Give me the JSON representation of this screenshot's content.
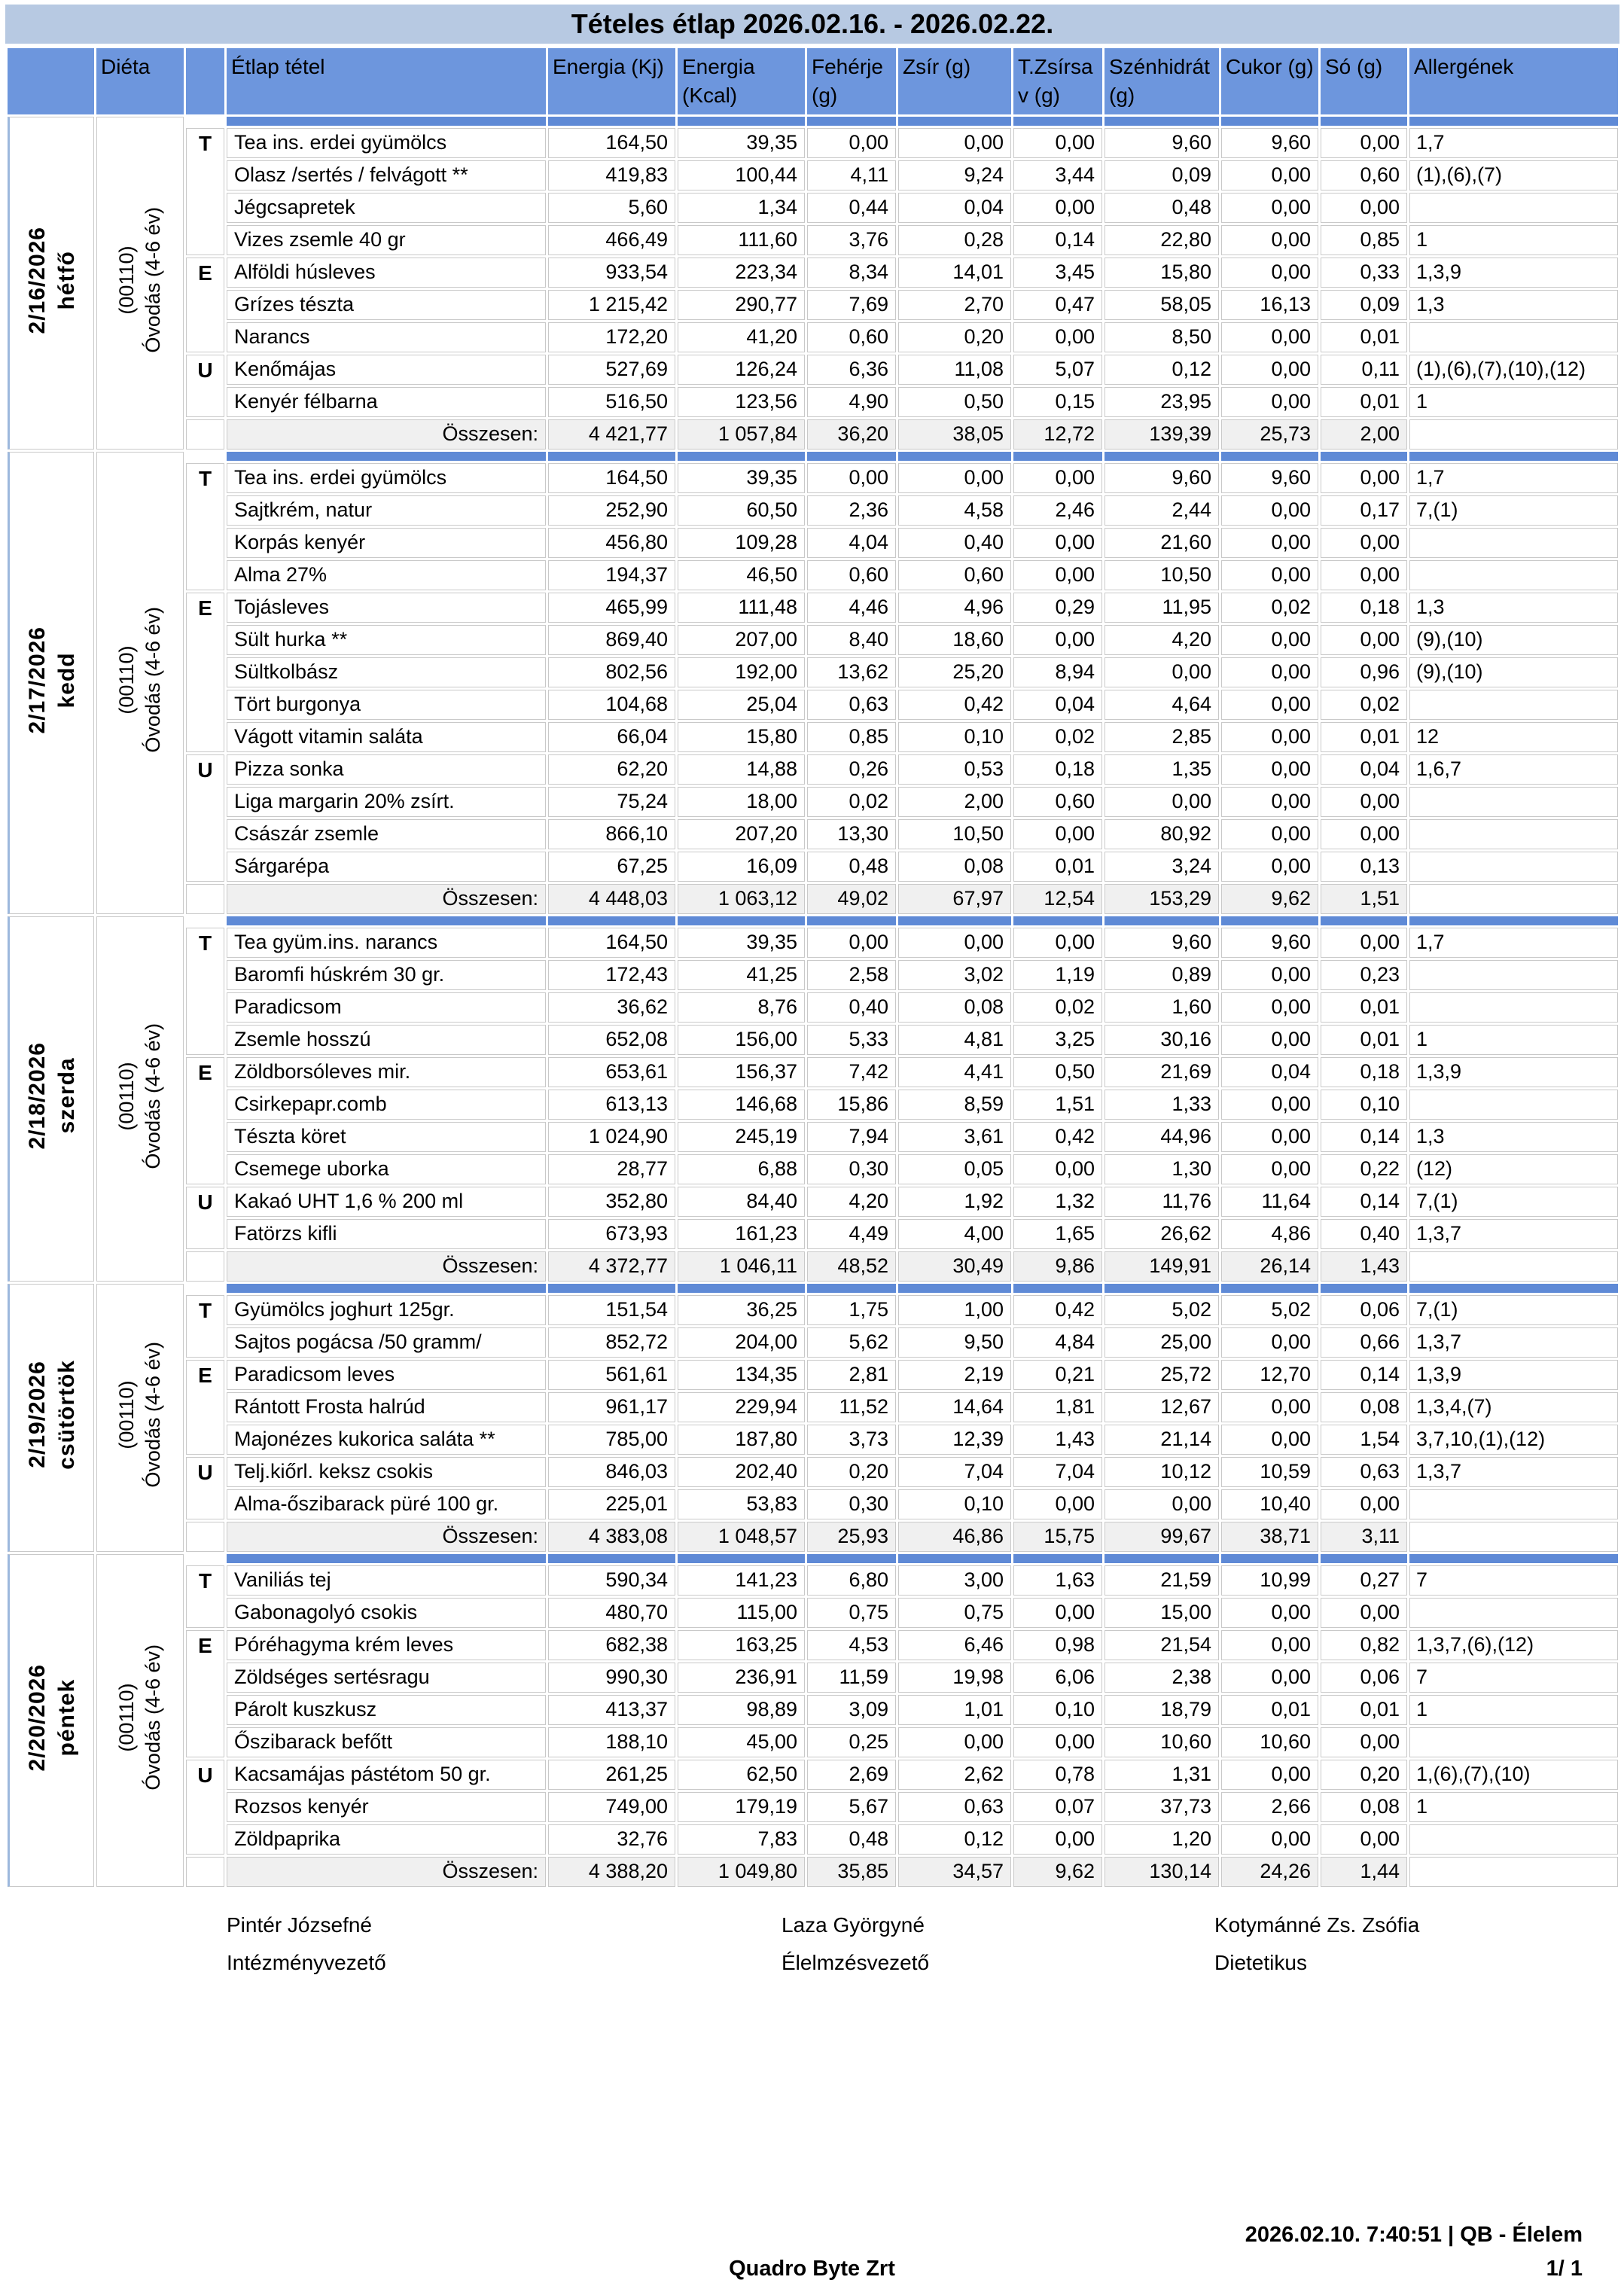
{
  "title": "Tételes étlap 2026.02.16. - 2026.02.22.",
  "colors": {
    "title_bg": "#b7c9e2",
    "header_bg": "#6d96dd",
    "separator_bg": "#5f8ad6",
    "total_bg": "#f0f0f0",
    "border": "#c9c9c9"
  },
  "table": {
    "columns": [
      "",
      "Diéta",
      "",
      "Étlap tétel",
      "Energia (Kj)",
      "Energia (Kcal)",
      "Fehérje (g)",
      "Zsír (g)",
      "T.Zsírsav (g)",
      "Szénhidrát (g)",
      "Cukor (g)",
      "Só (g)",
      "Allergének"
    ],
    "total_label": "Összesen:",
    "days": [
      {
        "date": "2/16/2026",
        "weekday": "hétfő",
        "diet_code": "(00110)",
        "diet_name": "Óvodás (4-6 év)",
        "rows": [
          {
            "meal": "T",
            "item": "Tea ins. erdei gyümölcs",
            "values": [
              "164,50",
              "39,35",
              "0,00",
              "0,00",
              "0,00",
              "9,60",
              "9,60",
              "0,00"
            ],
            "allergens": "1,7"
          },
          {
            "meal": "",
            "item": "Olasz /sertés / felvágott **",
            "values": [
              "419,83",
              "100,44",
              "4,11",
              "9,24",
              "3,44",
              "0,09",
              "0,00",
              "0,60"
            ],
            "allergens": "(1),(6),(7)"
          },
          {
            "meal": "",
            "item": "Jégcsapretek",
            "values": [
              "5,60",
              "1,34",
              "0,44",
              "0,04",
              "0,00",
              "0,48",
              "0,00",
              "0,00"
            ],
            "allergens": ""
          },
          {
            "meal": "",
            "item": "Vizes zsemle 40 gr",
            "values": [
              "466,49",
              "111,60",
              "3,76",
              "0,28",
              "0,14",
              "22,80",
              "0,00",
              "0,85"
            ],
            "allergens": "1"
          },
          {
            "meal": "E",
            "item": "Alföldi húsleves",
            "values": [
              "933,54",
              "223,34",
              "8,34",
              "14,01",
              "3,45",
              "15,80",
              "0,00",
              "0,33"
            ],
            "allergens": "1,3,9"
          },
          {
            "meal": "",
            "item": "Grízes tészta",
            "values": [
              "1 215,42",
              "290,77",
              "7,69",
              "2,70",
              "0,47",
              "58,05",
              "16,13",
              "0,09"
            ],
            "allergens": "1,3"
          },
          {
            "meal": "",
            "item": "Narancs",
            "values": [
              "172,20",
              "41,20",
              "0,60",
              "0,20",
              "0,00",
              "8,50",
              "0,00",
              "0,01"
            ],
            "allergens": ""
          },
          {
            "meal": "U",
            "item": "Kenőmájas",
            "values": [
              "527,69",
              "126,24",
              "6,36",
              "11,08",
              "5,07",
              "0,12",
              "0,00",
              "0,11"
            ],
            "allergens": "(1),(6),(7),(10),(12)"
          },
          {
            "meal": "",
            "item": "Kenyér félbarna",
            "values": [
              "516,50",
              "123,56",
              "4,90",
              "0,50",
              "0,15",
              "23,95",
              "0,00",
              "0,01"
            ],
            "allergens": "1"
          }
        ],
        "totals": [
          "4 421,77",
          "1 057,84",
          "36,20",
          "38,05",
          "12,72",
          "139,39",
          "25,73",
          "2,00"
        ]
      },
      {
        "date": "2/17/2026",
        "weekday": "kedd",
        "diet_code": "(00110)",
        "diet_name": "Óvodás (4-6 év)",
        "rows": [
          {
            "meal": "T",
            "item": "Tea ins. erdei gyümölcs",
            "values": [
              "164,50",
              "39,35",
              "0,00",
              "0,00",
              "0,00",
              "9,60",
              "9,60",
              "0,00"
            ],
            "allergens": "1,7"
          },
          {
            "meal": "",
            "item": "Sajtkrém, natur",
            "values": [
              "252,90",
              "60,50",
              "2,36",
              "4,58",
              "2,46",
              "2,44",
              "0,00",
              "0,17"
            ],
            "allergens": "7,(1)"
          },
          {
            "meal": "",
            "item": "Korpás kenyér",
            "values": [
              "456,80",
              "109,28",
              "4,04",
              "0,40",
              "0,00",
              "21,60",
              "0,00",
              "0,00"
            ],
            "allergens": ""
          },
          {
            "meal": "",
            "item": "Alma 27%",
            "values": [
              "194,37",
              "46,50",
              "0,60",
              "0,60",
              "0,00",
              "10,50",
              "0,00",
              "0,00"
            ],
            "allergens": ""
          },
          {
            "meal": "E",
            "item": "Tojásleves",
            "values": [
              "465,99",
              "111,48",
              "4,46",
              "4,96",
              "0,29",
              "11,95",
              "0,02",
              "0,18"
            ],
            "allergens": "1,3"
          },
          {
            "meal": "",
            "item": "Sült hurka **",
            "values": [
              "869,40",
              "207,00",
              "8,40",
              "18,60",
              "0,00",
              "4,20",
              "0,00",
              "0,00"
            ],
            "allergens": "(9),(10)"
          },
          {
            "meal": "",
            "item": "Sültkolbász",
            "values": [
              "802,56",
              "192,00",
              "13,62",
              "25,20",
              "8,94",
              "0,00",
              "0,00",
              "0,96"
            ],
            "allergens": "(9),(10)"
          },
          {
            "meal": "",
            "item": "Tört burgonya",
            "values": [
              "104,68",
              "25,04",
              "0,63",
              "0,42",
              "0,04",
              "4,64",
              "0,00",
              "0,02"
            ],
            "allergens": ""
          },
          {
            "meal": "",
            "item": "Vágott vitamin saláta",
            "values": [
              "66,04",
              "15,80",
              "0,85",
              "0,10",
              "0,02",
              "2,85",
              "0,00",
              "0,01"
            ],
            "allergens": "12"
          },
          {
            "meal": "U",
            "item": "Pizza sonka",
            "values": [
              "62,20",
              "14,88",
              "0,26",
              "0,53",
              "0,18",
              "1,35",
              "0,00",
              "0,04"
            ],
            "allergens": "1,6,7"
          },
          {
            "meal": "",
            "item": "Liga margarin 20% zsírt.",
            "values": [
              "75,24",
              "18,00",
              "0,02",
              "2,00",
              "0,60",
              "0,00",
              "0,00",
              "0,00"
            ],
            "allergens": ""
          },
          {
            "meal": "",
            "item": "Császár zsemle",
            "values": [
              "866,10",
              "207,20",
              "13,30",
              "10,50",
              "0,00",
              "80,92",
              "0,00",
              "0,00"
            ],
            "allergens": ""
          },
          {
            "meal": "",
            "item": "Sárgarépa",
            "values": [
              "67,25",
              "16,09",
              "0,48",
              "0,08",
              "0,01",
              "3,24",
              "0,00",
              "0,13"
            ],
            "allergens": ""
          }
        ],
        "totals": [
          "4 448,03",
          "1 063,12",
          "49,02",
          "67,97",
          "12,54",
          "153,29",
          "9,62",
          "1,51"
        ]
      },
      {
        "date": "2/18/2026",
        "weekday": "szerda",
        "diet_code": "(00110)",
        "diet_name": "Óvodás (4-6 év)",
        "rows": [
          {
            "meal": "T",
            "item": "Tea gyüm.ins. narancs",
            "values": [
              "164,50",
              "39,35",
              "0,00",
              "0,00",
              "0,00",
              "9,60",
              "9,60",
              "0,00"
            ],
            "allergens": "1,7"
          },
          {
            "meal": "",
            "item": "Baromfi húskrém 30 gr.",
            "values": [
              "172,43",
              "41,25",
              "2,58",
              "3,02",
              "1,19",
              "0,89",
              "0,00",
              "0,23"
            ],
            "allergens": ""
          },
          {
            "meal": "",
            "item": "Paradicsom",
            "values": [
              "36,62",
              "8,76",
              "0,40",
              "0,08",
              "0,02",
              "1,60",
              "0,00",
              "0,01"
            ],
            "allergens": ""
          },
          {
            "meal": "",
            "item": "Zsemle hosszú",
            "values": [
              "652,08",
              "156,00",
              "5,33",
              "4,81",
              "3,25",
              "30,16",
              "0,00",
              "0,01"
            ],
            "allergens": "1"
          },
          {
            "meal": "E",
            "item": "Zöldborsóleves mir.",
            "values": [
              "653,61",
              "156,37",
              "7,42",
              "4,41",
              "0,50",
              "21,69",
              "0,04",
              "0,18"
            ],
            "allergens": "1,3,9"
          },
          {
            "meal": "",
            "item": "Csirkepapr.comb",
            "values": [
              "613,13",
              "146,68",
              "15,86",
              "8,59",
              "1,51",
              "1,33",
              "0,00",
              "0,10"
            ],
            "allergens": ""
          },
          {
            "meal": "",
            "item": "Tészta köret",
            "values": [
              "1 024,90",
              "245,19",
              "7,94",
              "3,61",
              "0,42",
              "44,96",
              "0,00",
              "0,14"
            ],
            "allergens": "1,3"
          },
          {
            "meal": "",
            "item": "Csemege uborka",
            "values": [
              "28,77",
              "6,88",
              "0,30",
              "0,05",
              "0,00",
              "1,30",
              "0,00",
              "0,22"
            ],
            "allergens": "(12)"
          },
          {
            "meal": "U",
            "item": "Kakaó UHT 1,6 % 200 ml",
            "values": [
              "352,80",
              "84,40",
              "4,20",
              "1,92",
              "1,32",
              "11,76",
              "11,64",
              "0,14"
            ],
            "allergens": "7,(1)"
          },
          {
            "meal": "",
            "item": "Fatörzs kifli",
            "values": [
              "673,93",
              "161,23",
              "4,49",
              "4,00",
              "1,65",
              "26,62",
              "4,86",
              "0,40"
            ],
            "allergens": "1,3,7"
          }
        ],
        "totals": [
          "4 372,77",
          "1 046,11",
          "48,52",
          "30,49",
          "9,86",
          "149,91",
          "26,14",
          "1,43"
        ]
      },
      {
        "date": "2/19/2026",
        "weekday": "csütörtök",
        "diet_code": "(00110)",
        "diet_name": "Óvodás (4-6 év)",
        "rows": [
          {
            "meal": "T",
            "item": "Gyümölcs joghurt 125gr.",
            "values": [
              "151,54",
              "36,25",
              "1,75",
              "1,00",
              "0,42",
              "5,02",
              "5,02",
              "0,06"
            ],
            "allergens": "7,(1)"
          },
          {
            "meal": "",
            "item": "Sajtos pogácsa /50 gramm/",
            "values": [
              "852,72",
              "204,00",
              "5,62",
              "9,50",
              "4,84",
              "25,00",
              "0,00",
              "0,66"
            ],
            "allergens": "1,3,7"
          },
          {
            "meal": "E",
            "item": "Paradicsom leves",
            "values": [
              "561,61",
              "134,35",
              "2,81",
              "2,19",
              "0,21",
              "25,72",
              "12,70",
              "0,14"
            ],
            "allergens": "1,3,9"
          },
          {
            "meal": "",
            "item": "Rántott Frosta halrúd",
            "values": [
              "961,17",
              "229,94",
              "11,52",
              "14,64",
              "1,81",
              "12,67",
              "0,00",
              "0,08"
            ],
            "allergens": "1,3,4,(7)"
          },
          {
            "meal": "",
            "item": "Majonézes kukorica saláta **",
            "values": [
              "785,00",
              "187,80",
              "3,73",
              "12,39",
              "1,43",
              "21,14",
              "0,00",
              "1,54"
            ],
            "allergens": "3,7,10,(1),(12)"
          },
          {
            "meal": "U",
            "item": "Telj.kiőrl. keksz csokis",
            "values": [
              "846,03",
              "202,40",
              "0,20",
              "7,04",
              "7,04",
              "10,12",
              "10,59",
              "0,63"
            ],
            "allergens": "1,3,7"
          },
          {
            "meal": "",
            "item": "Alma-őszibarack püré 100 gr.",
            "values": [
              "225,01",
              "53,83",
              "0,30",
              "0,10",
              "0,00",
              "0,00",
              "10,40",
              "0,00"
            ],
            "allergens": ""
          }
        ],
        "totals": [
          "4 383,08",
          "1 048,57",
          "25,93",
          "46,86",
          "15,75",
          "99,67",
          "38,71",
          "3,11"
        ]
      },
      {
        "date": "2/20/2026",
        "weekday": "péntek",
        "diet_code": "(00110)",
        "diet_name": "Óvodás (4-6 év)",
        "rows": [
          {
            "meal": "T",
            "item": "Vaniliás tej",
            "values": [
              "590,34",
              "141,23",
              "6,80",
              "3,00",
              "1,63",
              "21,59",
              "10,99",
              "0,27"
            ],
            "allergens": "7"
          },
          {
            "meal": "",
            "item": "Gabonagolyó csokis",
            "values": [
              "480,70",
              "115,00",
              "0,75",
              "0,75",
              "0,00",
              "15,00",
              "0,00",
              "0,00"
            ],
            "allergens": ""
          },
          {
            "meal": "E",
            "item": "Póréhagyma krém leves",
            "values": [
              "682,38",
              "163,25",
              "4,53",
              "6,46",
              "0,98",
              "21,54",
              "0,00",
              "0,82"
            ],
            "allergens": "1,3,7,(6),(12)"
          },
          {
            "meal": "",
            "item": "Zöldséges sertésragu",
            "values": [
              "990,30",
              "236,91",
              "11,59",
              "19,98",
              "6,06",
              "2,38",
              "0,00",
              "0,06"
            ],
            "allergens": "7"
          },
          {
            "meal": "",
            "item": "Párolt kuszkusz",
            "values": [
              "413,37",
              "98,89",
              "3,09",
              "1,01",
              "0,10",
              "18,79",
              "0,01",
              "0,01"
            ],
            "allergens": "1"
          },
          {
            "meal": "",
            "item": "Őszibarack befőtt",
            "values": [
              "188,10",
              "45,00",
              "0,25",
              "0,00",
              "0,00",
              "10,60",
              "10,60",
              "0,00"
            ],
            "allergens": ""
          },
          {
            "meal": "U",
            "item": "Kacsamájas pástétom 50 gr.",
            "values": [
              "261,25",
              "62,50",
              "2,69",
              "2,62",
              "0,78",
              "1,31",
              "0,00",
              "0,20"
            ],
            "allergens": "1,(6),(7),(10)"
          },
          {
            "meal": "",
            "item": "Rozsos kenyér",
            "values": [
              "749,00",
              "179,19",
              "5,67",
              "0,63",
              "0,07",
              "37,73",
              "2,66",
              "0,08"
            ],
            "allergens": "1"
          },
          {
            "meal": "",
            "item": "Zöldpaprika",
            "values": [
              "32,76",
              "7,83",
              "0,48",
              "0,12",
              "0,00",
              "1,20",
              "0,00",
              "0,00"
            ],
            "allergens": ""
          }
        ],
        "totals": [
          "4 388,20",
          "1 049,80",
          "35,85",
          "34,57",
          "9,62",
          "130,14",
          "24,26",
          "1,44"
        ]
      }
    ]
  },
  "signatures": [
    {
      "name": "Pintér Józsefné",
      "role": "Intézményvezető"
    },
    {
      "name": "Laza Györgyné",
      "role": "Élelmzésvezető"
    },
    {
      "name": "Kotymánné Zs. Zsófia",
      "role": "Dietetikus"
    }
  ],
  "footer": {
    "company": "Quadro Byte Zrt",
    "printed": "2026.02.10. 7:40:51 | QB - Élelem",
    "page": "1/ 1"
  }
}
